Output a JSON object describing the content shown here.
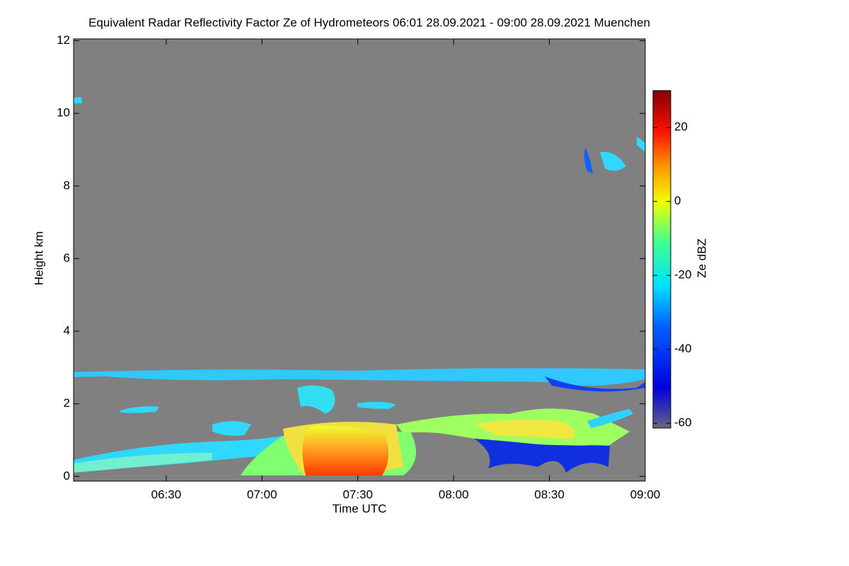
{
  "chart_data": {
    "type": "heatmap",
    "title": "Equivalent Radar Reflectivity Factor Ze of Hydrometeors   06:01 28.09.2021 - 09:00 28.09.2021 Muenchen",
    "x_label": "Time UTC",
    "y_label": "Height km",
    "colorbar_label": "Ze dBZ",
    "xlim": [
      361,
      540
    ],
    "xticks": [
      {
        "value": 390,
        "label": "06:30"
      },
      {
        "value": 420,
        "label": "07:00"
      },
      {
        "value": 450,
        "label": "07:30"
      },
      {
        "value": 480,
        "label": "08:00"
      },
      {
        "value": 510,
        "label": "08:30"
      },
      {
        "value": 540,
        "label": "09:00"
      }
    ],
    "ylim": [
      -0.13,
      12.05
    ],
    "yticks": [
      0,
      2,
      4,
      6,
      8,
      10,
      12
    ],
    "zlim": [
      -61.3,
      30
    ],
    "zticks": [
      -60,
      -40,
      -20,
      0,
      20
    ]
  }
}
